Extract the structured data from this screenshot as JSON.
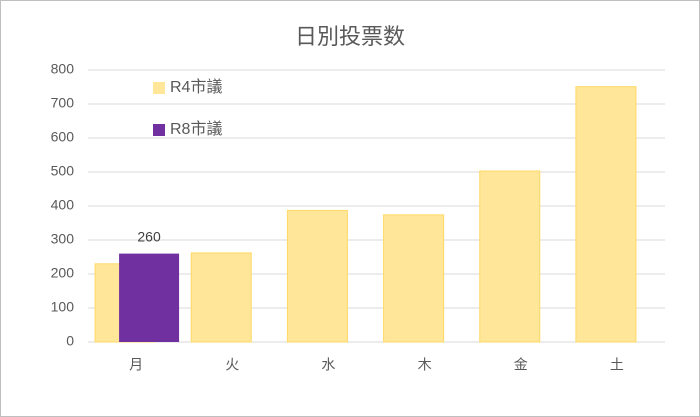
{
  "chart_data": {
    "type": "bar",
    "title": "日別投票数",
    "categories": [
      "月",
      "火",
      "水",
      "木",
      "金",
      "土"
    ],
    "series": [
      {
        "name": "R4市議",
        "color": "#ffe699",
        "values": [
          230,
          262,
          387,
          374,
          503,
          751
        ]
      },
      {
        "name": "R8市議",
        "color": "#7030a0",
        "values": [
          260,
          null,
          null,
          null,
          null,
          null
        ],
        "data_labels": true
      }
    ],
    "ylim": [
      0,
      800
    ],
    "yticks": [
      0,
      100,
      200,
      300,
      400,
      500,
      600,
      700,
      800
    ],
    "grid": true,
    "legend": "top-left"
  }
}
